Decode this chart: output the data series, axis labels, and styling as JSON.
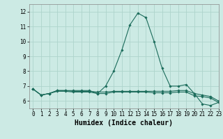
{
  "title": "",
  "xlabel": "Humidex (Indice chaleur)",
  "ylabel": "",
  "background_color": "#cceae4",
  "grid_color": "#aed4cc",
  "line_color": "#1a6b5a",
  "xlim": [
    -0.5,
    23
  ],
  "ylim": [
    5.5,
    12.5
  ],
  "yticks": [
    6,
    7,
    8,
    9,
    10,
    11,
    12
  ],
  "xticks": [
    0,
    1,
    2,
    3,
    4,
    5,
    6,
    7,
    8,
    9,
    10,
    11,
    12,
    13,
    14,
    15,
    16,
    17,
    18,
    19,
    20,
    21,
    22,
    23
  ],
  "series": [
    {
      "x": [
        0,
        1,
        2,
        3,
        4,
        5,
        6,
        7,
        8,
        9,
        10,
        11,
        12,
        13,
        14,
        15,
        16,
        17,
        18,
        19,
        20,
        21,
        22,
        23
      ],
      "y": [
        6.8,
        6.4,
        6.5,
        6.7,
        6.7,
        6.7,
        6.7,
        6.7,
        6.5,
        7.0,
        8.0,
        9.4,
        11.1,
        11.9,
        11.6,
        10.0,
        8.2,
        7.0,
        7.0,
        7.1,
        6.5,
        5.8,
        5.7,
        5.9
      ]
    },
    {
      "x": [
        0,
        1,
        2,
        3,
        4,
        5,
        6,
        7,
        8,
        9,
        10,
        11,
        12,
        13,
        14,
        15,
        16,
        17,
        18,
        19,
        20,
        21,
        22,
        23
      ],
      "y": [
        6.8,
        6.4,
        6.5,
        6.7,
        6.7,
        6.65,
        6.65,
        6.65,
        6.6,
        6.6,
        6.65,
        6.65,
        6.65,
        6.65,
        6.65,
        6.65,
        6.65,
        6.65,
        6.7,
        6.7,
        6.5,
        6.4,
        6.3,
        6.0
      ]
    },
    {
      "x": [
        0,
        1,
        2,
        3,
        4,
        5,
        6,
        7,
        8,
        9,
        10,
        11,
        12,
        13,
        14,
        15,
        16,
        17,
        18,
        19,
        20,
        21,
        22,
        23
      ],
      "y": [
        6.8,
        6.4,
        6.5,
        6.65,
        6.65,
        6.6,
        6.6,
        6.6,
        6.5,
        6.5,
        6.6,
        6.6,
        6.6,
        6.6,
        6.6,
        6.55,
        6.55,
        6.55,
        6.6,
        6.6,
        6.35,
        6.3,
        6.2,
        5.9
      ]
    }
  ],
  "marker": "D",
  "marker_size": 1.8,
  "line_width": 0.8,
  "font_size_label": 6.5,
  "font_size_tick": 5.5,
  "font_size_xlabel": 7.0
}
